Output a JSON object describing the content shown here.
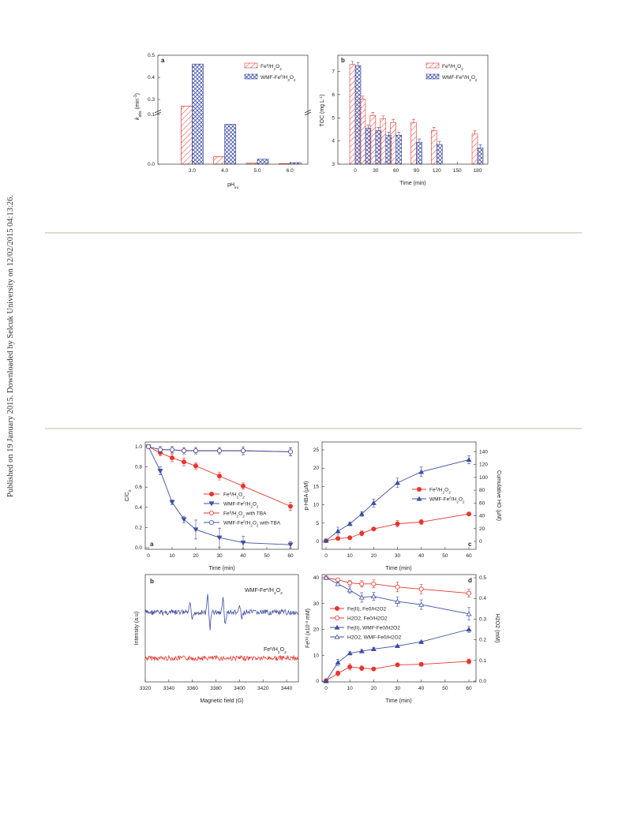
{
  "side_note": "Published on 19 January 2015. Downloaded by Selcuk University on 12/02/2015 04:13:26.",
  "colors": {
    "red": "#e8352e",
    "blue": "#3d4fa3",
    "red_light": "#f29b95",
    "blue_light": "#8c9ad0"
  },
  "chart_data": [
    {
      "panel": "a",
      "type": "bar",
      "xlabel": "pH",
      "xlabel_sub": "ini",
      "ylabel": "k",
      "ylabel_sub": "obs",
      "ylabel_unit": "(min",
      "categories": [
        "3.0",
        "4.0",
        "5.0",
        "6.0"
      ],
      "yticks_low": [
        "0.0",
        "0.1"
      ],
      "yticks_high": [
        "0.3",
        "0.4",
        "0.5"
      ],
      "legend_position": "top-right",
      "axis_break": true,
      "series": [
        {
          "name": "Fe0/H2O2",
          "values": [
            0.27,
            0.015,
            0.002,
            0.001
          ]
        },
        {
          "name": "WMF-Fe0/H2O2",
          "values": [
            0.46,
            0.08,
            0.01,
            0.003
          ]
        }
      ]
    },
    {
      "panel": "b",
      "type": "bar",
      "xlabel": "Time (min)",
      "ylabel": "TOC (mg L",
      "categories": [
        "0",
        "30",
        "60",
        "90",
        "120",
        "150",
        "180"
      ],
      "yticks": [
        "3",
        "4",
        "5",
        "6",
        "7"
      ],
      "ylim": [
        3,
        7.7
      ],
      "legend_position": "top-right",
      "series": [
        {
          "name": "Fe0/H2O2",
          "x": [
            0,
            15,
            30,
            45,
            60,
            90,
            120,
            180
          ],
          "values": [
            7.3,
            5.8,
            5.1,
            4.95,
            4.8,
            4.8,
            4.45,
            4.3
          ]
        },
        {
          "name": "WMF-Fe0/H2O2",
          "x": [
            0,
            15,
            30,
            45,
            60,
            90,
            120,
            180
          ],
          "values": [
            7.25,
            4.55,
            4.45,
            4.25,
            4.25,
            3.95,
            3.85,
            3.7
          ]
        }
      ]
    },
    {
      "panel": "a",
      "type": "line",
      "xlabel": "Time (min)",
      "ylabel": "C/C",
      "x": [
        0,
        5,
        10,
        15,
        20,
        30,
        40,
        60
      ],
      "xticks": [
        "0",
        "10",
        "20",
        "30",
        "40",
        "50",
        "60"
      ],
      "yticks": [
        "0.0",
        "0.2",
        "0.4",
        "0.6",
        "0.8",
        "1.0"
      ],
      "ylim": [
        0,
        1.0
      ],
      "legend_position": "center-right",
      "series": [
        {
          "name": "Fe0/H2O2",
          "values": [
            1.0,
            0.94,
            0.89,
            0.85,
            0.81,
            0.71,
            0.61,
            0.41
          ]
        },
        {
          "name": "WMF-Fe0/H2O2",
          "values": [
            1.0,
            0.76,
            0.45,
            0.28,
            0.18,
            0.1,
            0.05,
            0.03
          ]
        },
        {
          "name": "Fe0/H2O2 with TBA",
          "values": [
            1.0,
            0.97,
            0.97,
            0.96,
            0.96,
            0.96,
            0.96,
            0.95
          ]
        },
        {
          "name": "WMF-Fe0/H2O2 with TBA",
          "values": [
            1.0,
            0.97,
            0.97,
            0.96,
            0.96,
            0.96,
            0.96,
            0.95
          ]
        }
      ]
    },
    {
      "panel": "c",
      "type": "line",
      "xlabel": "Time (min)",
      "ylabel": "p-HBA (μM)",
      "y2label": "Cumulative HO (μM)",
      "x": [
        0,
        5,
        10,
        15,
        20,
        30,
        40,
        60
      ],
      "xticks": [
        "0",
        "10",
        "20",
        "30",
        "40",
        "50",
        "60"
      ],
      "yticks": [
        "0",
        "5",
        "10",
        "15",
        "20",
        "25"
      ],
      "ylim": [
        0,
        25
      ],
      "y2ticks": [
        "0",
        "20",
        "40",
        "60",
        "80",
        "100",
        "120",
        "140"
      ],
      "legend_position": "center-right",
      "series": [
        {
          "name": "Fe0/H2O2",
          "values": [
            0.2,
            0.8,
            1.0,
            2.2,
            3.4,
            4.8,
            5.3,
            7.5
          ]
        },
        {
          "name": "WMF-Fe0/H2O2",
          "values": [
            0.2,
            2.8,
            4.8,
            7.5,
            10.5,
            16.0,
            19.0,
            22.3
          ]
        }
      ]
    },
    {
      "panel": "b",
      "type": "line",
      "xlabel": "Magnetic field (G)",
      "ylabel": "Intensity (a.u)",
      "xticks": [
        "3320",
        "3340",
        "3360",
        "3380",
        "3400",
        "3420",
        "3440"
      ],
      "series": [
        {
          "name": "WMF-Fe0/H2O2"
        },
        {
          "name": "Fe0/H2O2"
        }
      ]
    },
    {
      "panel": "d",
      "type": "line",
      "xlabel": "Time (min)",
      "ylabel": "Fe",
      "ylabel_unit": "(x10",
      "y2label": "H2O2 (mM)",
      "x": [
        0,
        5,
        10,
        15,
        20,
        30,
        40,
        60
      ],
      "xticks": [
        "0",
        "10",
        "20",
        "30",
        "40",
        "50",
        "60"
      ],
      "yticks": [
        "0",
        "10",
        "20",
        "30",
        "40"
      ],
      "ylim": [
        0,
        40
      ],
      "y2ticks": [
        "0.0",
        "0.1",
        "0.2",
        "0.3",
        "0.4",
        "0.5"
      ],
      "legend_position": "center-left",
      "series": [
        {
          "name": "Fe(II), Fe0/H2O2",
          "axis": "left",
          "values": [
            0.2,
            3.0,
            5.5,
            5.0,
            4.7,
            6.3,
            6.5,
            7.6
          ]
        },
        {
          "name": "H2O2, Fe0/H2O2",
          "axis": "right",
          "values": [
            0.5,
            0.49,
            0.475,
            0.47,
            0.47,
            0.455,
            0.445,
            0.425
          ]
        },
        {
          "name": "Fe(II), WMF-Fe0/H2O2",
          "axis": "right",
          "values": [
            0.0,
            0.09,
            0.135,
            0.145,
            0.155,
            0.17,
            0.19,
            0.25
          ]
        },
        {
          "name": "H2O2, WMF-Fe0/H2O2",
          "axis": "right",
          "values": [
            0.5,
            0.47,
            0.44,
            0.405,
            0.41,
            0.385,
            0.37,
            0.325
          ]
        }
      ]
    }
  ],
  "labels": {
    "fe_a": "Fe",
    "fe_sup": "0",
    "h2o2": "/H",
    "two": "2",
    "o": "O",
    "wmf": "WMF-Fe",
    "tba": " with TBA",
    "min_unit": "-1",
    "mgl_unit": "-1",
    "fe_ii": "(II)",
    "x10_unit": "-3",
    "mM": " mM)",
    "panel_a": "a",
    "panel_b": "b",
    "panel_c": "c",
    "panel_d": "d",
    "legend_d": [
      "Fe(II), Fe0/H2O2",
      "H2O2, Fe0/H2O2",
      "Fe(II), WMF-Fe0/H2O2",
      "H2O2, WMF-Fe0/H2O2"
    ]
  }
}
